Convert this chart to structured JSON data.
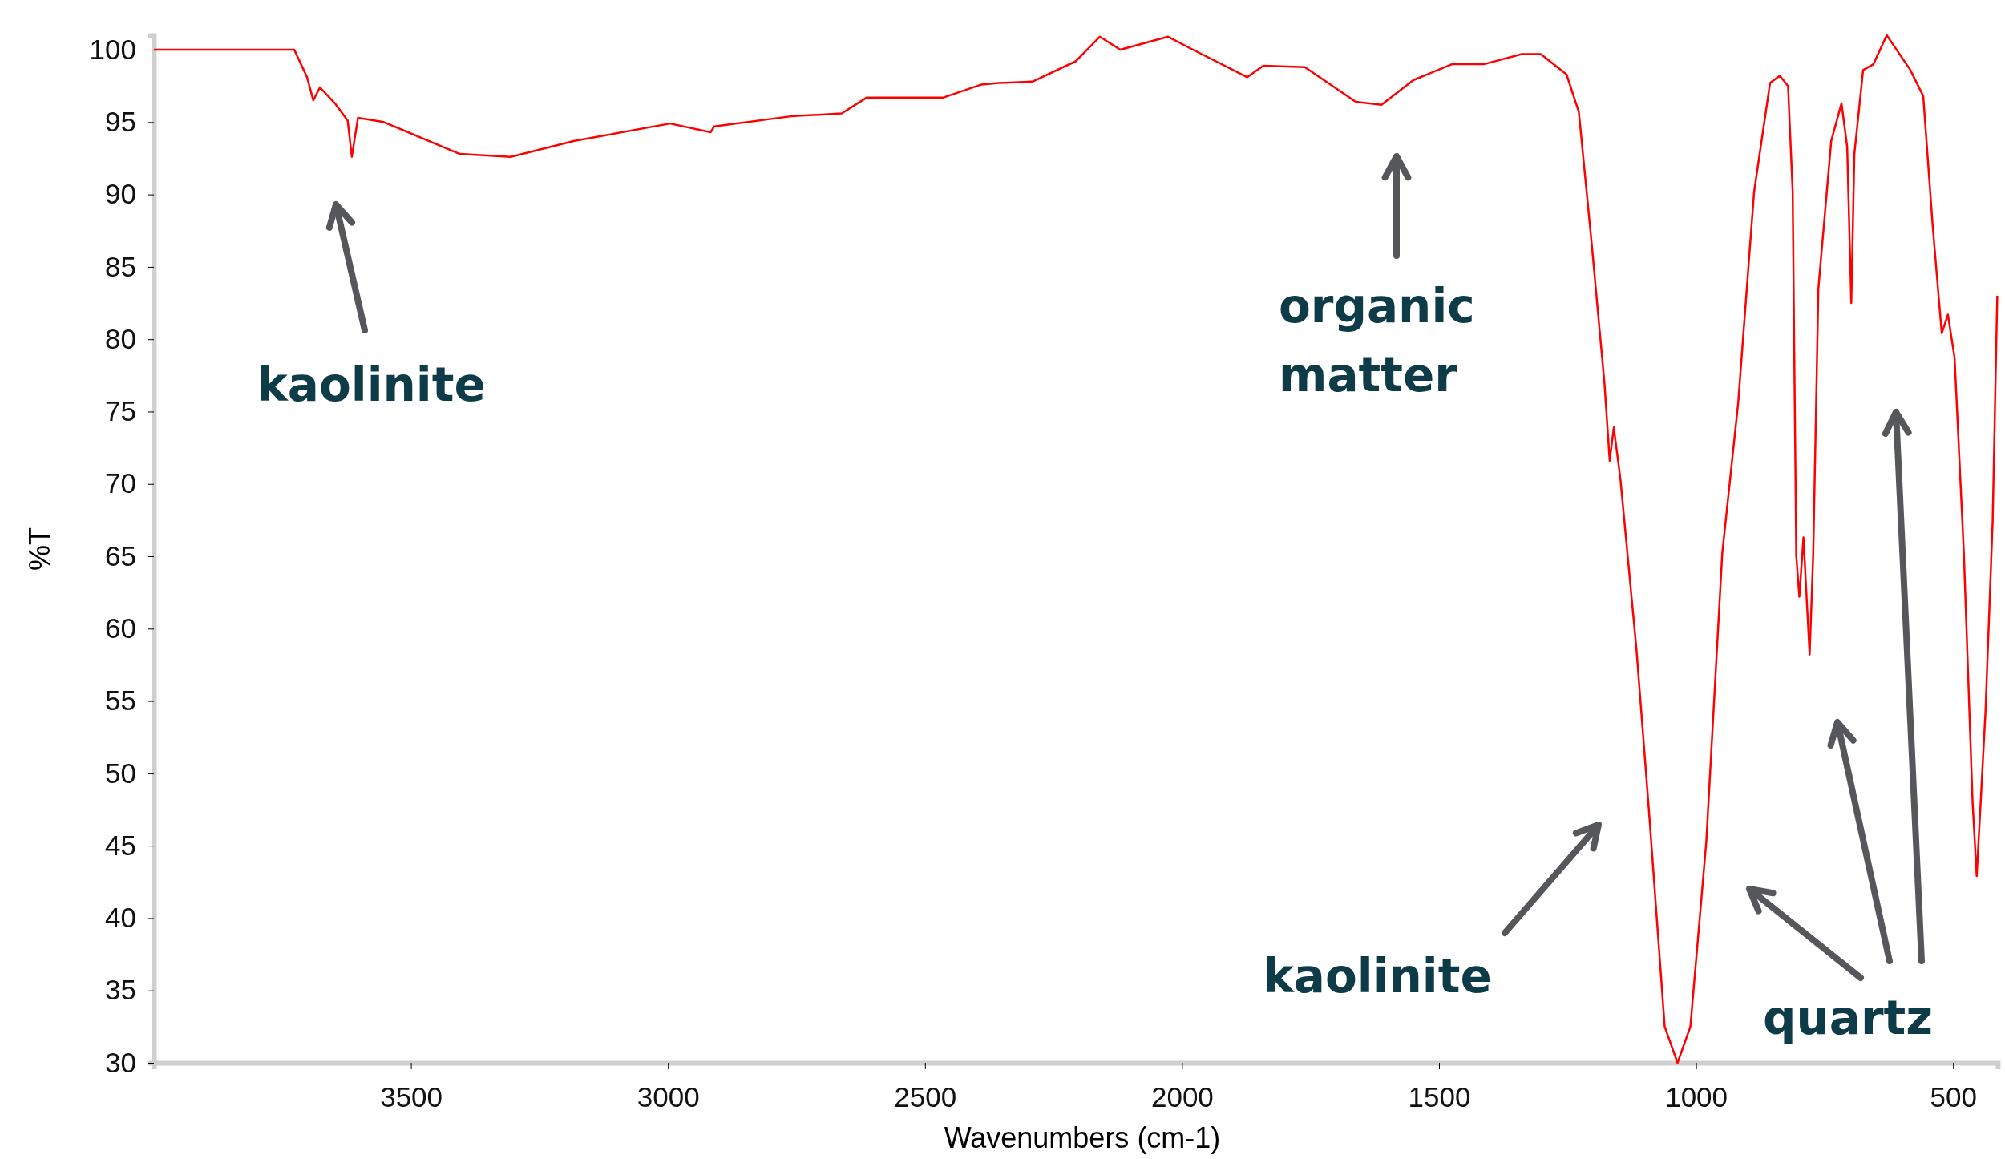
{
  "chart_data": {
    "type": "line",
    "xlabel": "Wavenumbers (cm-1)",
    "ylabel": "%T",
    "xlim": [
      4000,
      413
    ],
    "ylim": [
      30,
      101
    ],
    "xticks": [
      3500,
      3000,
      2500,
      2000,
      1500,
      1000,
      500
    ],
    "yticks": [
      30,
      35,
      40,
      45,
      50,
      55,
      60,
      65,
      70,
      75,
      80,
      85,
      90,
      95,
      100
    ],
    "grid": false,
    "marker": "none",
    "line_style": "solid",
    "series": [
      {
        "color": "#ff0000",
        "x": [
          4000,
          3727,
          3702,
          3690,
          3677,
          3648,
          3623,
          3615,
          3603,
          3553,
          3405,
          3306,
          3182,
          2996,
          2917,
          2910,
          2761,
          2662,
          2613,
          2464,
          2390,
          2356,
          2291,
          2207,
          2160,
          2120,
          2027,
          1984,
          1873,
          1842,
          1761,
          1662,
          1612,
          1550,
          1475,
          1413,
          1339,
          1302,
          1252,
          1228,
          1203,
          1178,
          1168,
          1160,
          1147,
          1116,
          1092,
          1061,
          1036,
          1011,
          980,
          949,
          918,
          887,
          856,
          837,
          821,
          812,
          805,
          799,
          791,
          779,
          772,
          762,
          737,
          717,
          706,
          698,
          692,
          675,
          655,
          629,
          583,
          558,
          540,
          522,
          510,
          497,
          479,
          462,
          454,
          437,
          423,
          414
        ],
        "values": [
          100,
          100,
          98.1,
          96.5,
          97.4,
          96.3,
          95.1,
          92.6,
          95.3,
          95,
          92.8,
          92.6,
          93.7,
          94.9,
          94.3,
          94.7,
          95.4,
          95.6,
          96.7,
          96.7,
          97.6,
          97.7,
          97.8,
          99.2,
          100.9,
          100,
          100.9,
          100.1,
          98.1,
          98.9,
          98.8,
          96.4,
          96.2,
          97.9,
          99,
          99,
          99.7,
          99.7,
          98.3,
          95.7,
          86.6,
          76.9,
          71.6,
          73.9,
          70.3,
          58.6,
          47.6,
          32.5,
          30,
          32.5,
          45.3,
          65.2,
          75.6,
          90.2,
          97.7,
          98.2,
          97.5,
          90.2,
          65,
          62.2,
          66.3,
          58.2,
          65.2,
          83.5,
          93.7,
          96.3,
          93.3,
          82.5,
          92.8,
          98.6,
          99,
          101,
          98.6,
          96.8,
          88,
          80.4,
          81.7,
          78.7,
          65.2,
          48,
          42.9,
          54.2,
          67.4,
          83
        ]
      }
    ],
    "annotations": [
      "kaolinite",
      "organic matter",
      "kaolinite",
      "quartz"
    ]
  }
}
